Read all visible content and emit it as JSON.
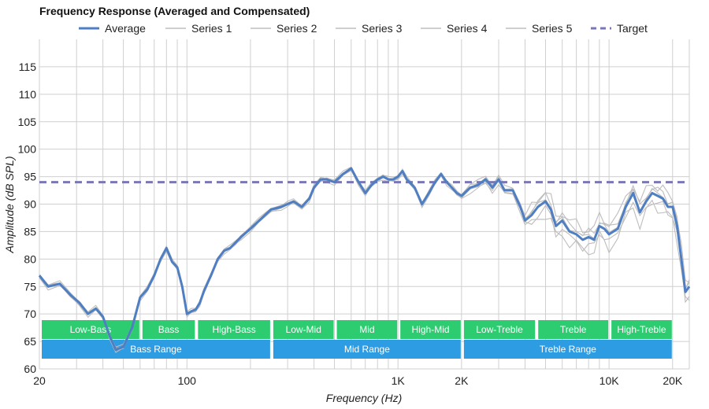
{
  "chart_data": {
    "type": "line",
    "title": "Frequency Response (Averaged and Compensated)",
    "xlabel": "Frequency (Hz)",
    "ylabel": "Amplitude (dB SPL)",
    "xscale": "log",
    "xlim": [
      20,
      24000
    ],
    "ylim": [
      60,
      120
    ],
    "grid": true,
    "legend_position": "top",
    "x_ticks": [
      {
        "value": 20,
        "label": "20"
      },
      {
        "value": 100,
        "label": "100"
      },
      {
        "value": 1000,
        "label": "1K"
      },
      {
        "value": 2000,
        "label": "2K"
      },
      {
        "value": 10000,
        "label": "10K"
      },
      {
        "value": 20000,
        "label": "20K"
      }
    ],
    "y_ticks": [
      60,
      65,
      70,
      75,
      80,
      85,
      90,
      95,
      100,
      105,
      110,
      115
    ],
    "target": {
      "name": "Target",
      "value": 94,
      "color": "#7a78b4"
    },
    "average": {
      "name": "Average",
      "color": "#4f7fc2",
      "x": [
        20,
        22,
        25,
        28,
        31,
        34,
        37,
        40,
        43,
        46,
        50,
        55,
        60,
        65,
        70,
        75,
        80,
        85,
        90,
        95,
        100,
        105,
        110,
        115,
        120,
        130,
        140,
        150,
        160,
        170,
        180,
        200,
        220,
        250,
        280,
        300,
        320,
        350,
        380,
        400,
        430,
        460,
        500,
        550,
        600,
        650,
        700,
        750,
        800,
        850,
        900,
        950,
        1000,
        1050,
        1100,
        1200,
        1300,
        1400,
        1500,
        1600,
        1700,
        1800,
        1900,
        2000,
        2200,
        2400,
        2600,
        2800,
        3000,
        3200,
        3500,
        3800,
        4000,
        4300,
        4600,
        5000,
        5300,
        5600,
        6000,
        6500,
        7000,
        7500,
        8000,
        8500,
        9000,
        9500,
        10000,
        11000,
        12000,
        13000,
        14000,
        15000,
        16000,
        17000,
        18000,
        19000,
        20000,
        21000,
        22000,
        23000,
        24000
      ],
      "values": [
        77,
        75,
        75.5,
        73.5,
        72,
        70,
        71,
        69.5,
        66,
        63.5,
        64,
        67.5,
        73,
        74.5,
        77,
        80,
        82,
        79.5,
        78.5,
        75,
        70,
        70.5,
        70.8,
        72,
        74,
        77,
        80,
        81.5,
        82,
        83,
        84,
        85.5,
        87,
        89,
        89.5,
        90,
        90.5,
        89.5,
        91,
        93,
        94.5,
        94.5,
        94,
        95.5,
        96.5,
        94,
        92,
        93.5,
        94.5,
        95,
        94.5,
        94.5,
        95,
        96,
        94.5,
        93,
        90,
        92,
        94,
        95.5,
        94,
        93,
        92,
        91.5,
        93,
        93.5,
        94.5,
        93,
        94.5,
        92.5,
        92.5,
        89.5,
        87,
        88,
        89.5,
        90.5,
        89,
        86,
        87,
        85,
        84.5,
        83.5,
        84,
        83.5,
        86,
        85.5,
        84.5,
        85.5,
        89.5,
        92,
        88.5,
        90.5,
        92,
        91.5,
        91,
        89.5,
        89.5,
        86,
        80,
        74,
        75
      ]
    },
    "series": [
      {
        "name": "Series 1",
        "offset": 0.4,
        "color": "#bdbdbd"
      },
      {
        "name": "Series 2",
        "offset": -0.5,
        "color": "#bdbdbd"
      },
      {
        "name": "Series 3",
        "offset": 0.7,
        "color": "#bdbdbd"
      },
      {
        "name": "Series 4",
        "offset": -0.8,
        "color": "#bdbdbd"
      },
      {
        "name": "Series 5",
        "offset": 0.2,
        "color": "#bdbdbd"
      }
    ],
    "bands_top": [
      {
        "label": "Low-Bass",
        "from": 20,
        "to": 60
      },
      {
        "label": "Bass",
        "from": 60,
        "to": 110
      },
      {
        "label": "High-Bass",
        "from": 110,
        "to": 250
      },
      {
        "label": "Low-Mid",
        "from": 250,
        "to": 500
      },
      {
        "label": "Mid",
        "from": 500,
        "to": 1000
      },
      {
        "label": "High-Mid",
        "from": 1000,
        "to": 2000
      },
      {
        "label": "Low-Treble",
        "from": 2000,
        "to": 4500
      },
      {
        "label": "Treble",
        "from": 4500,
        "to": 10000
      },
      {
        "label": "High-Treble",
        "from": 10000,
        "to": 20000
      }
    ],
    "bands_bottom": [
      {
        "label": "Bass Range",
        "from": 20,
        "to": 250
      },
      {
        "label": "Mid Range",
        "from": 250,
        "to": 2000
      },
      {
        "label": "Treble Range",
        "from": 2000,
        "to": 20000
      }
    ],
    "band_colors": {
      "top": "#2ecc71",
      "bottom": "#2d9ce3"
    }
  }
}
